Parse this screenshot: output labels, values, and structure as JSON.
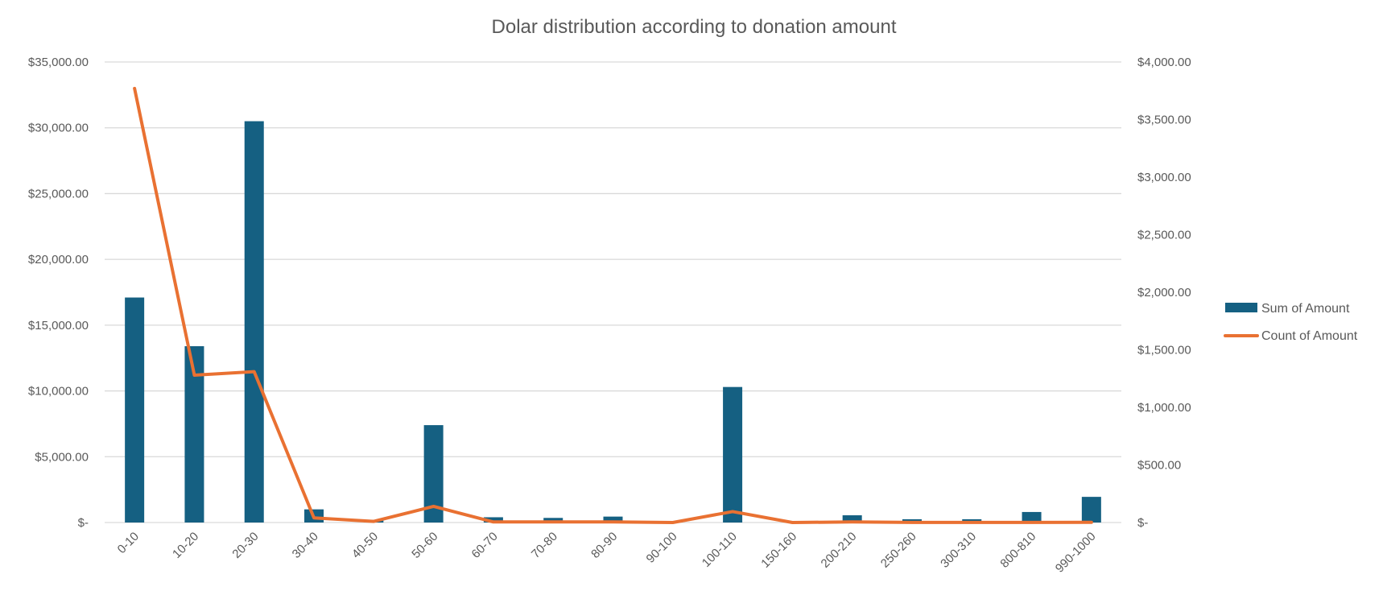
{
  "chart_data": {
    "type": "bar",
    "title": "Dolar distribution according to donation amount",
    "categories": [
      "0-10",
      "10-20",
      "20-30",
      "30-40",
      "40-50",
      "50-60",
      "60-70",
      "70-80",
      "80-90",
      "90-100",
      "100-110",
      "150-160",
      "200-210",
      "250-260",
      "300-310",
      "800-810",
      "990-1000"
    ],
    "y_left": {
      "ticks": [
        "$-",
        "$5,000.00",
        "$10,000.00",
        "$15,000.00",
        "$20,000.00",
        "$25,000.00",
        "$30,000.00",
        "$35,000.00"
      ],
      "ylim": [
        0,
        35000
      ]
    },
    "y_right": {
      "ticks": [
        "$-",
        "$500.00",
        "$1,000.00",
        "$1,500.00",
        "$2,000.00",
        "$2,500.00",
        "$3,000.00",
        "$3,500.00",
        "$4,000.00"
      ],
      "ylim": [
        0,
        4000
      ]
    },
    "grid": true,
    "legend_position": "right",
    "series": [
      {
        "name": "Sum of Amount",
        "type": "bar",
        "axis": "left",
        "color": "#156082",
        "values": [
          17100,
          13400,
          30500,
          1000,
          200,
          7400,
          400,
          350,
          450,
          30,
          10300,
          0,
          550,
          250,
          250,
          800,
          1950
        ]
      },
      {
        "name": "Count of Amount",
        "type": "line",
        "axis": "right",
        "color": "#E97132",
        "values": [
          3770,
          1280,
          1310,
          40,
          10,
          140,
          5,
          5,
          5,
          0,
          95,
          0,
          5,
          1,
          1,
          1,
          2
        ]
      }
    ]
  }
}
